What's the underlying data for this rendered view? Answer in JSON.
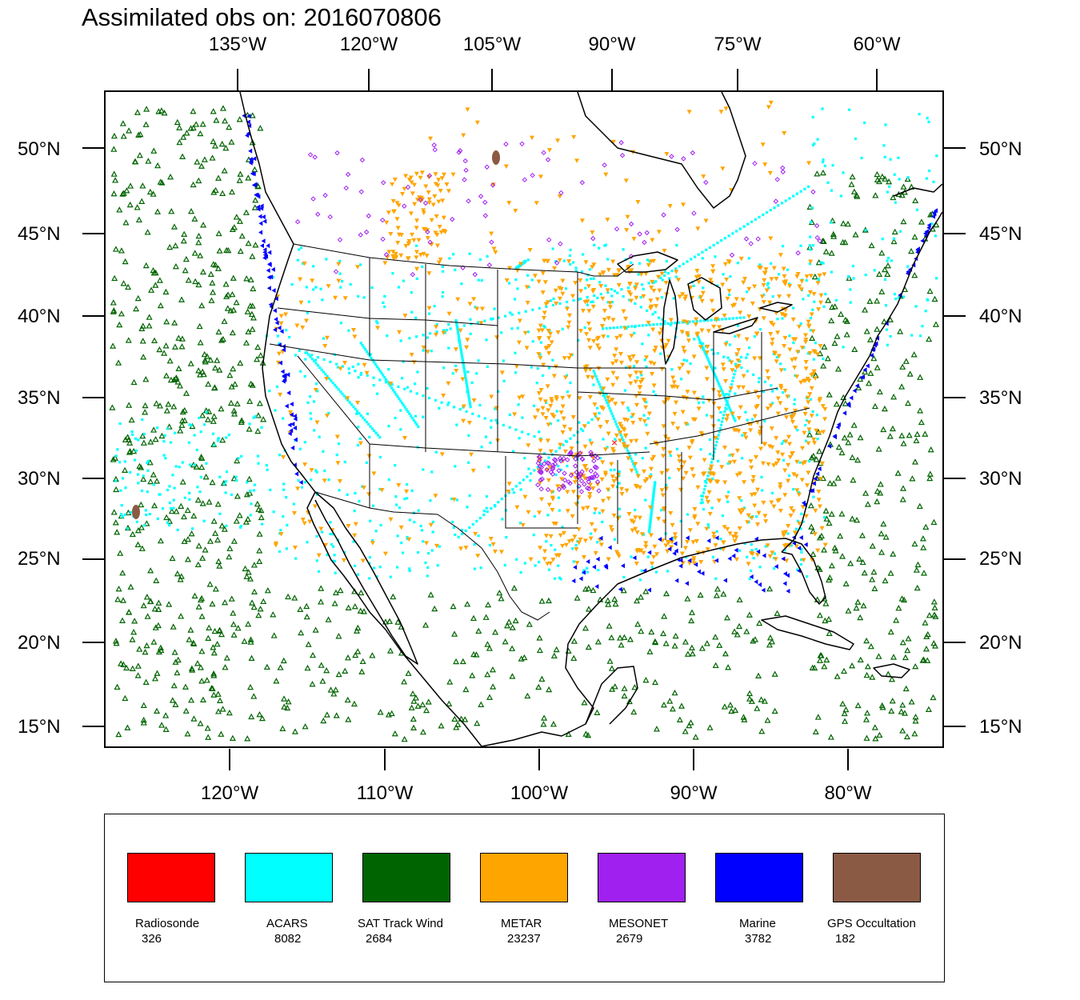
{
  "title": "Assimilated obs on: 2016070806",
  "top_longitudes": [
    "135°W",
    "120°W",
    "105°W",
    "90°W",
    "75°W",
    "60°W"
  ],
  "bottom_longitudes": [
    "120°W",
    "110°W",
    "100°W",
    "90°W",
    "80°W"
  ],
  "latitudes": [
    "50°N",
    "45°N",
    "40°N",
    "35°N",
    "30°N",
    "25°N",
    "20°N",
    "15°N"
  ],
  "legend": [
    {
      "name": "Radiosonde",
      "count": "326",
      "color": "#ff0000"
    },
    {
      "name": "ACARS",
      "count": "8082",
      "color": "#00ffff"
    },
    {
      "name": "SAT Track Wind",
      "count": "2684",
      "color": "#006400"
    },
    {
      "name": "METAR",
      "count": "23237",
      "color": "#ffa500"
    },
    {
      "name": "MESONET",
      "count": "2679",
      "color": "#a020f0"
    },
    {
      "name": "Marine",
      "count": "3782",
      "color": "#0000ff"
    },
    {
      "name": "GPS Occultation",
      "count": "182",
      "color": "#8b5a45"
    }
  ],
  "colors": {
    "land_outline": "#000000",
    "background": "#ffffff"
  }
}
